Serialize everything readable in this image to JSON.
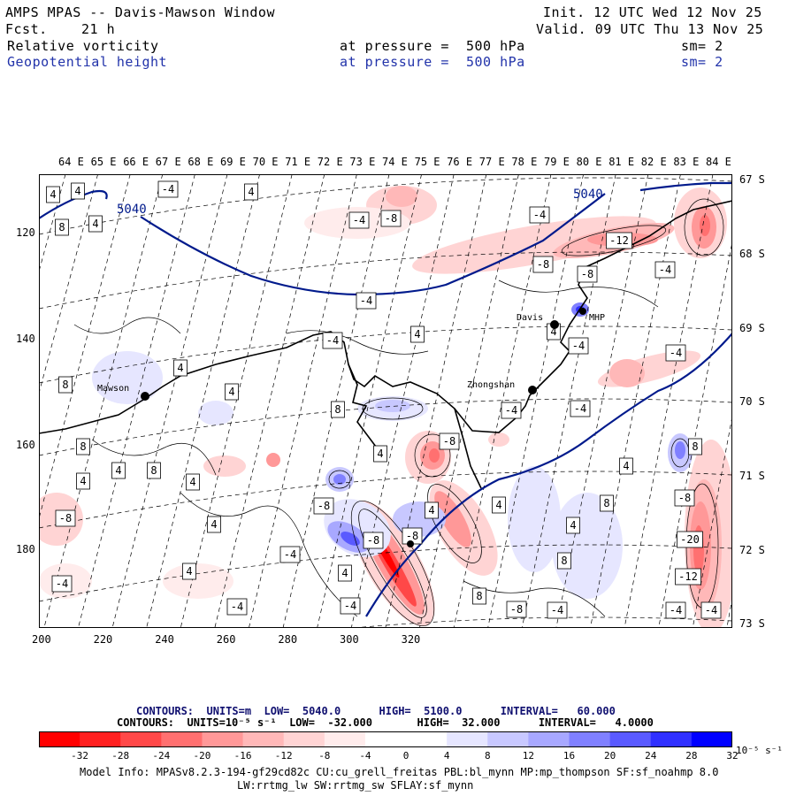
{
  "header": {
    "title": "AMPS MPAS -- Davis-Mawson Window",
    "fcst_label": "Fcst.",
    "fcst_value": "21 h",
    "init": "Init. 12 UTC Wed 12 Nov 25",
    "valid": "Valid. 09 UTC Thu 13 Nov 25",
    "field1_name": "Relative vorticity",
    "field1_level": "at pressure =  500 hPa",
    "field1_sm": "sm= 2",
    "field2_name": "Geopotential height",
    "field2_level": "at pressure =  500 hPa",
    "field2_sm": "sm= 2"
  },
  "map": {
    "lon_labels": [
      "64 E",
      "65 E",
      "66 E",
      "67 E",
      "68 E",
      "69 E",
      "70 E",
      "71 E",
      "72 E",
      "73 E",
      "74 E",
      "75 E",
      "76 E",
      "77 E",
      "78 E",
      "79 E",
      "80 E",
      "81 E",
      "82 E",
      "83 E",
      "84 E"
    ],
    "lat_labels": [
      "67 S",
      "68 S",
      "69 S",
      "70 S",
      "71 S",
      "72 S",
      "73 S"
    ],
    "y_ticks": [
      "120",
      "140",
      "160",
      "180"
    ],
    "x_ticks": [
      "200",
      "220",
      "240",
      "260",
      "280",
      "300",
      "320"
    ],
    "stations": {
      "mawson": "Mawson",
      "davis": "Davis",
      "mhp": "MHP",
      "zhongshan": "Zhongshan"
    },
    "height_contour_label_1": "5040",
    "height_contour_label_2": "5040"
  },
  "footer": {
    "contours1": "CONTOURS:  UNITS=m  LOW=  5040.0      HIGH=  5100.0      INTERVAL=   60.000",
    "contours2": "CONTOURS:  UNITS=10⁻⁵ s⁻¹  LOW=  -32.000       HIGH=  32.000      INTERVAL=   4.0000",
    "cbar_ticks": [
      "-32",
      "-28",
      "-24",
      "-20",
      "-16",
      "-12",
      "-8",
      "-4",
      "0",
      "4",
      "8",
      "12",
      "16",
      "20",
      "24",
      "28",
      "32"
    ],
    "cbar_unit": "10⁻⁵ s⁻¹",
    "model_info_1": "Model Info: MPASv8.2.3-194-gf29cd82c CU:cu_grell_freitas PBL:bl_mynn MP:mp_thompson SF:sf_noahmp 8.0",
    "model_info_2": "LW:rrtmg_lw SW:rrtmg_sw SFLAY:sf_mynn"
  },
  "colors": {
    "cbar": [
      "#ff0000",
      "#ff2020",
      "#ff4848",
      "#ff7070",
      "#ff9898",
      "#ffb8b8",
      "#ffd4d4",
      "#ffecec",
      "#ffffff",
      "#ffffff",
      "#e6e6ff",
      "#c8c8ff",
      "#a8a8ff",
      "#8080ff",
      "#5a5aff",
      "#3030ff",
      "#0000ff"
    ],
    "height_contour": "#001a8c"
  }
}
